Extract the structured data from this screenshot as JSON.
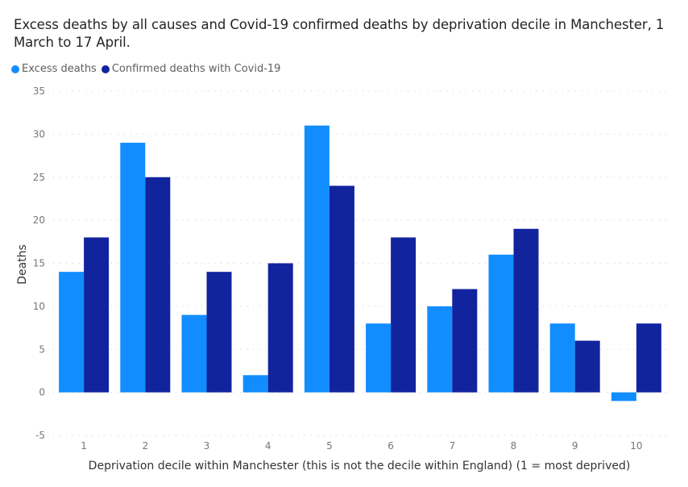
{
  "chart_data": {
    "type": "bar",
    "title": "Excess deaths by all causes and Covid-19 confirmed deaths by deprivation decile in Manchester, 1 March to 17 April.",
    "xlabel": "Deprivation decile within Manchester (this is not the decile within England) (1 = most deprived)",
    "ylabel": "Deaths",
    "categories": [
      "1",
      "2",
      "3",
      "4",
      "5",
      "6",
      "7",
      "8",
      "9",
      "10"
    ],
    "series": [
      {
        "name": "Excess deaths",
        "color": "#118DFF",
        "values": [
          14,
          29,
          9,
          2,
          31,
          8,
          10,
          16,
          8,
          -1
        ]
      },
      {
        "name": "Confirmed deaths with Covid-19",
        "color": "#12239E",
        "values": [
          18,
          25,
          14,
          15,
          24,
          18,
          12,
          19,
          6,
          8
        ]
      }
    ],
    "ylim": [
      -5,
      35
    ],
    "yticks": [
      -5,
      0,
      5,
      10,
      15,
      20,
      25,
      30,
      35
    ],
    "grid": true,
    "legend_position": "top-left"
  }
}
